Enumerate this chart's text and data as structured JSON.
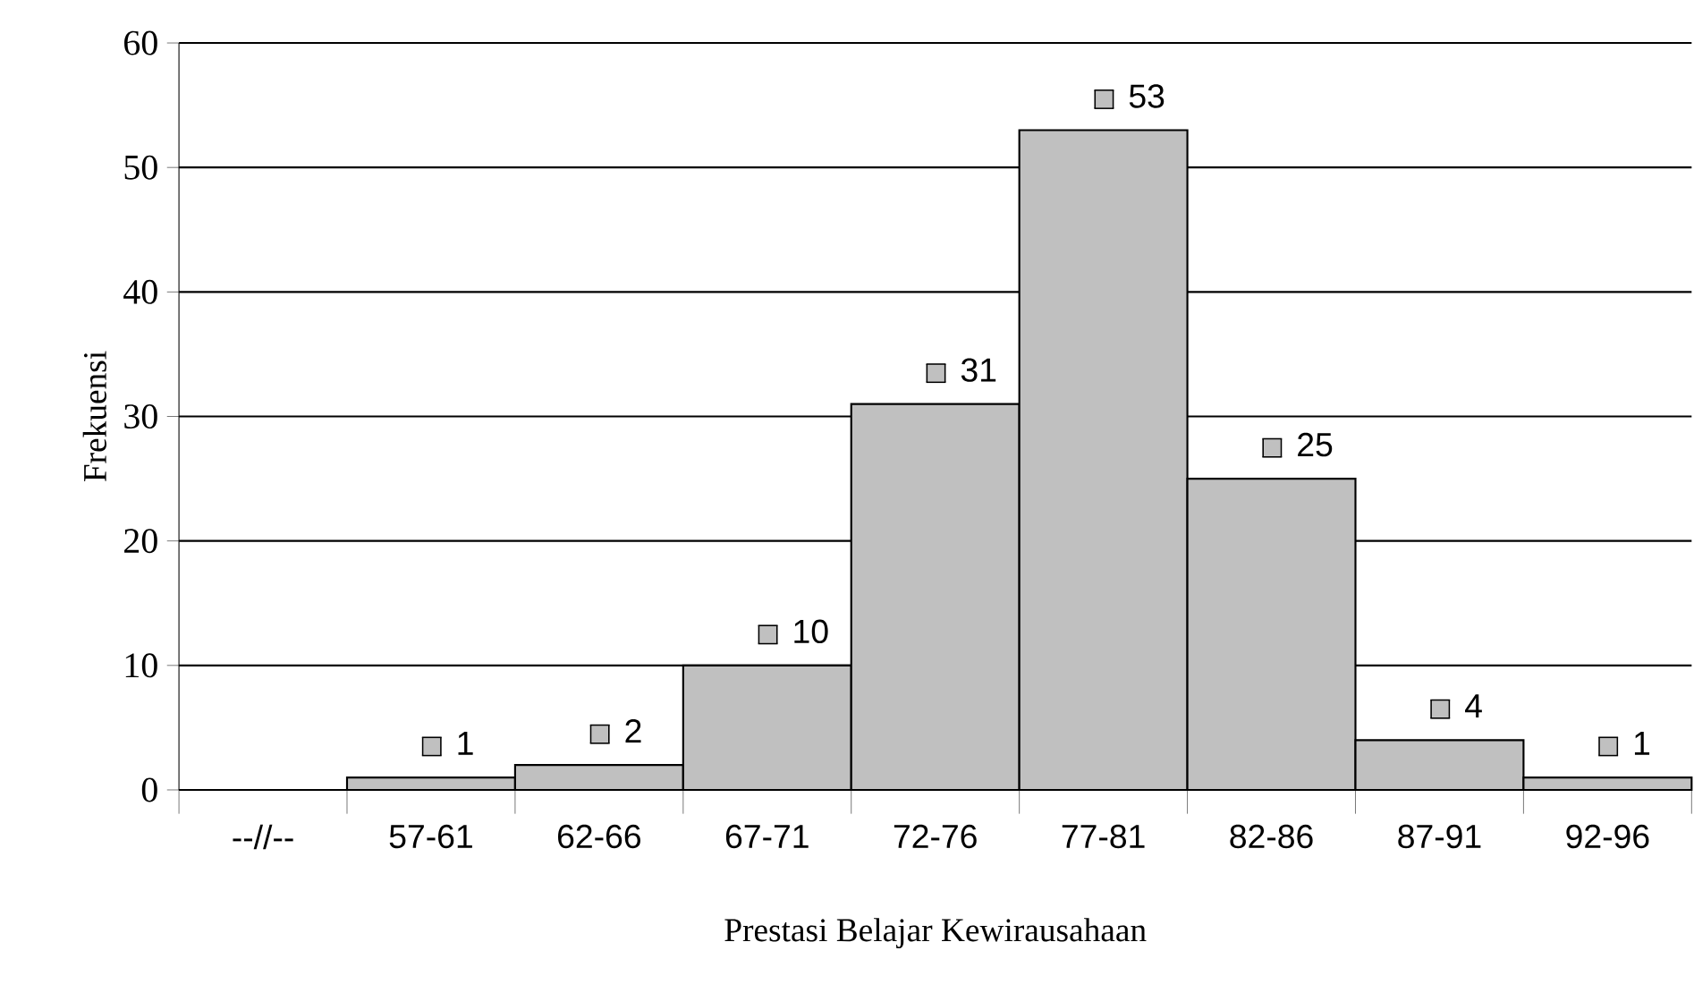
{
  "chart_data": {
    "type": "bar",
    "xlabel": "Prestasi Belajar  Kewirausahaan",
    "ylabel": "Frekuensi",
    "categories": [
      "--//--",
      "57-61",
      "62-66",
      "67-71",
      "72-76",
      "77-81",
      "82-86",
      "87-91",
      "92-96"
    ],
    "values": [
      null,
      1,
      2,
      10,
      31,
      53,
      25,
      4,
      1
    ],
    "color": "#c0c0c0",
    "ylim": [
      0,
      60
    ],
    "yticks": [
      0,
      10,
      20,
      30,
      40,
      50,
      60
    ],
    "grid": "y",
    "data_labels": true
  }
}
